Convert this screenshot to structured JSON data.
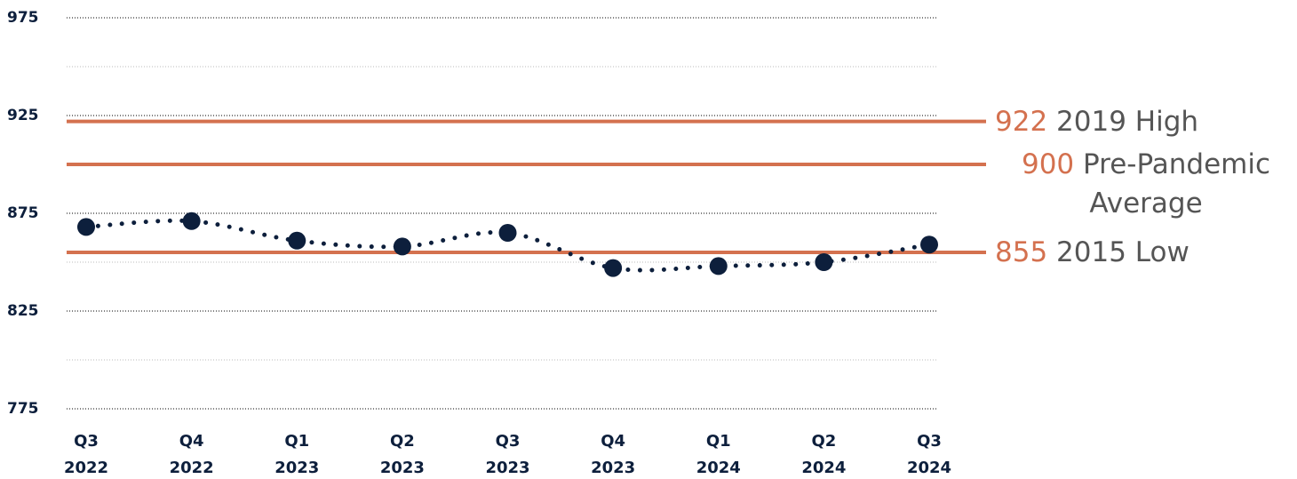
{
  "chart_data": {
    "type": "line",
    "categories": [
      "Q3 2022",
      "Q4 2022",
      "Q1 2023",
      "Q2 2023",
      "Q3 2023",
      "Q4 2023",
      "Q1 2024",
      "Q2 2024",
      "Q3 2024"
    ],
    "series": [
      {
        "color": "#0d1f3c",
        "values": [
          868,
          871,
          861,
          858,
          865,
          847,
          848,
          850,
          859
        ]
      }
    ],
    "ylim": [
      775,
      975
    ],
    "yticks": [
      775,
      825,
      875,
      925,
      975
    ],
    "minor_yticks": [
      800,
      850,
      900,
      950
    ],
    "grid": true,
    "reference_lines": [
      {
        "value": 922,
        "label": "2019 High",
        "color": "#d4714f"
      },
      {
        "value": 900,
        "label": "Pre-Pandemic Average",
        "color": "#d4714f"
      },
      {
        "value": 855,
        "label": "2015 Low",
        "color": "#d4714f"
      }
    ]
  }
}
